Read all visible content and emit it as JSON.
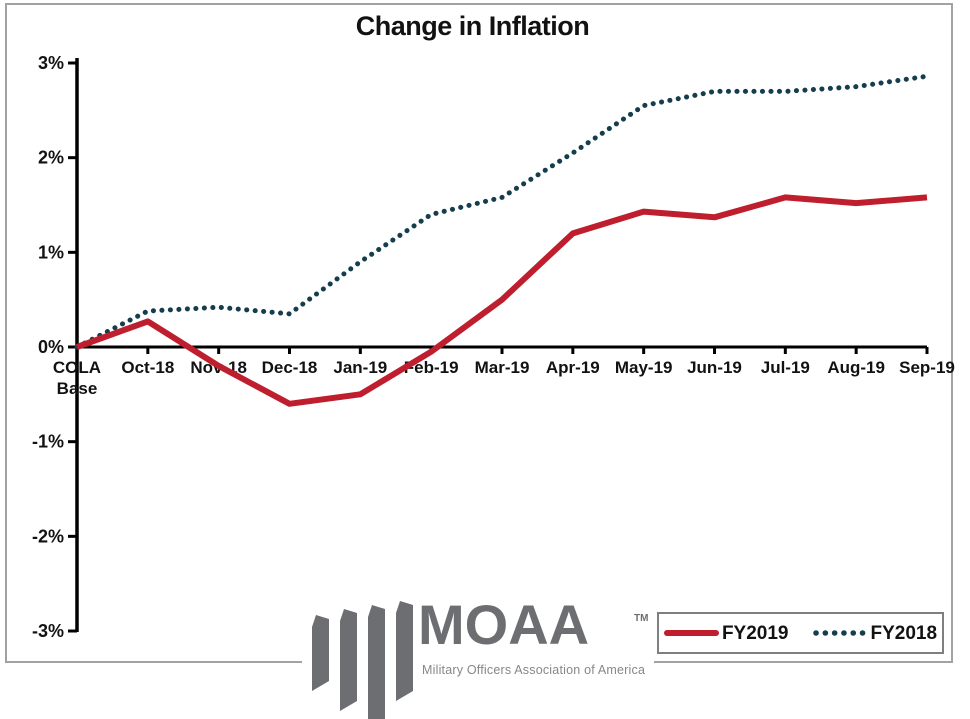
{
  "chart_data": {
    "type": "line",
    "title": "Change in Inflation",
    "xlabel": "",
    "ylabel": "",
    "ylim": [
      -3,
      3
    ],
    "grid": false,
    "legend_position": "bottom-right",
    "y_ticks": [
      "3%",
      "2%",
      "1%",
      "0%",
      "-1%",
      "-2%",
      "-3%"
    ],
    "y_tick_values": [
      3,
      2,
      1,
      0,
      -1,
      -2,
      -3
    ],
    "categories": [
      "COLA\nBase",
      "Oct-18",
      "Nov-18",
      "Dec-18",
      "Jan-19",
      "Feb-19",
      "Mar-19",
      "Apr-19",
      "May-19",
      "Jun-19",
      "Jul-19",
      "Aug-19",
      "Sep-19"
    ],
    "series": [
      {
        "name": "FY2019",
        "style": "solid",
        "color": "#be1e2d",
        "values": [
          0,
          0.27,
          -0.2,
          -0.6,
          -0.5,
          -0.05,
          0.5,
          1.2,
          1.43,
          1.37,
          1.58,
          1.52,
          1.58
        ]
      },
      {
        "name": "FY2018",
        "style": "dotted",
        "color": "#143d4d",
        "values": [
          0,
          0.38,
          0.42,
          0.35,
          0.9,
          1.4,
          1.58,
          2.05,
          2.55,
          2.7,
          2.7,
          2.75,
          2.86
        ]
      }
    ]
  },
  "logo": {
    "brand": "MOAA",
    "trademark": "TM",
    "tagline": "Military Officers Association of America",
    "color": "#6d6e71"
  },
  "frame": {
    "border_color": "#a2a2a2"
  }
}
